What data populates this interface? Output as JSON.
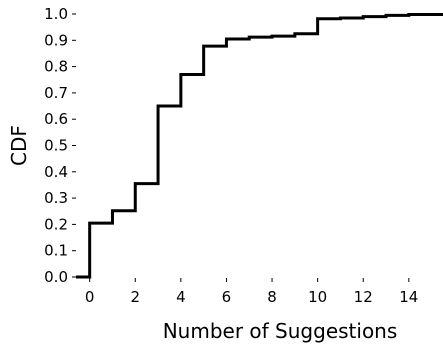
{
  "chart_data": {
    "type": "line",
    "subtype": "step-cdf",
    "title": "",
    "xlabel": "Number of Suggestions",
    "ylabel": "CDF",
    "xlim": [
      -0.6,
      15.5
    ],
    "ylim": [
      0.0,
      1.0
    ],
    "grid": false,
    "legend": "none",
    "x_ticks": [
      0,
      2,
      4,
      6,
      8,
      10,
      12,
      14
    ],
    "x_tick_labels": [
      "0",
      "2",
      "4",
      "6",
      "8",
      "10",
      "12",
      "14"
    ],
    "y_ticks": [
      0.0,
      0.1,
      0.2,
      0.3,
      0.4,
      0.5,
      0.6,
      0.7,
      0.8,
      0.9,
      1.0
    ],
    "y_tick_labels": [
      "0.0",
      "0.1",
      "0.2",
      "0.3",
      "0.4",
      "0.5",
      "0.6",
      "0.7",
      "0.8",
      "0.9",
      "1.0"
    ],
    "series": [
      {
        "color": "#000000",
        "x": [
          -0.6,
          0,
          1,
          2,
          3,
          4,
          5,
          6,
          7,
          8,
          9,
          10,
          11,
          12,
          13,
          14,
          15.5
        ],
        "y": [
          0.0,
          0.205,
          0.252,
          0.355,
          0.65,
          0.77,
          0.878,
          0.905,
          0.912,
          0.916,
          0.925,
          0.982,
          0.985,
          0.99,
          0.995,
          0.998,
          1.0
        ]
      }
    ]
  }
}
